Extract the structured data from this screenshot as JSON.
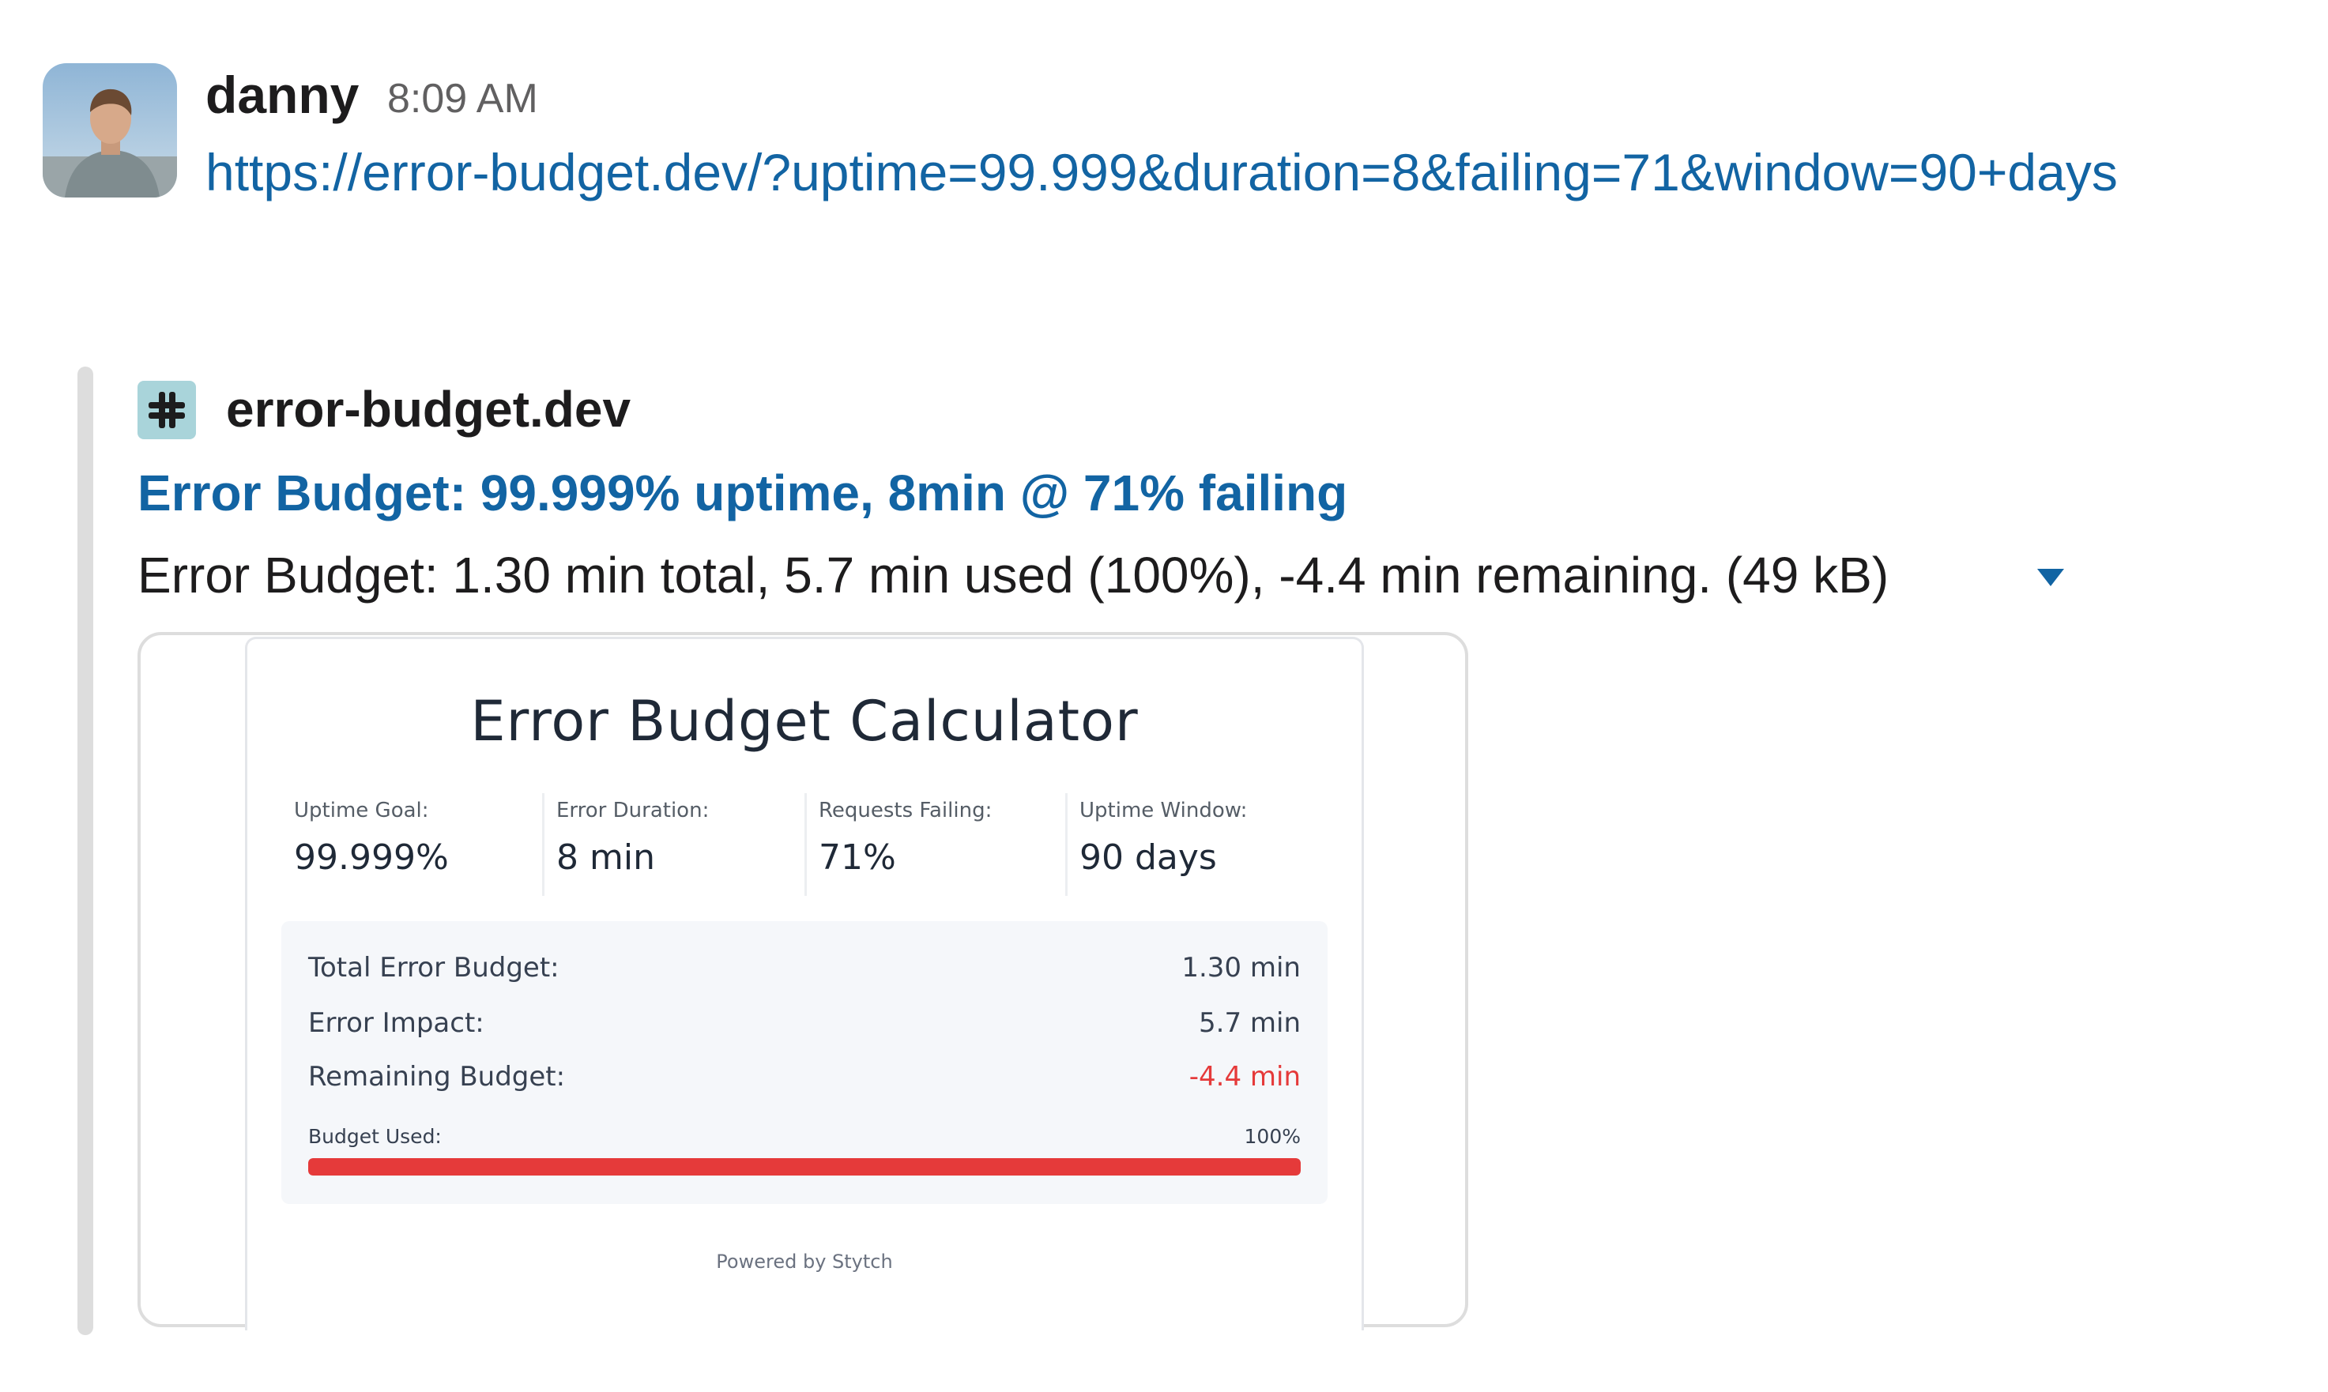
{
  "message": {
    "author": "danny",
    "timestamp": "8:09 AM",
    "link": "https://error-budget.dev/?uptime=99.999&duration=8&failing=71&window=90+days",
    "avatar_icon": "user-avatar"
  },
  "unfurl": {
    "site_icon": "slack-hash-icon",
    "site_name": "error-budget.dev",
    "title": "Error Budget: 99.999% uptime, 8min @ 71% failing",
    "description": "Error Budget: 1.30 min total, 5.7 min used (100%), -4.4 min remaining. (49 kB)",
    "toggle_icon": "caret-down-icon"
  },
  "preview": {
    "title": "Error Budget Calculator",
    "metrics": [
      {
        "label": "Uptime Goal:",
        "value": "99.999%"
      },
      {
        "label": "Error Duration:",
        "value": "8 min"
      },
      {
        "label": "Requests Failing:",
        "value": "71%"
      },
      {
        "label": "Uptime Window:",
        "value": "90 days"
      }
    ],
    "results": [
      {
        "label": "Total Error Budget:",
        "value": "1.30 min"
      },
      {
        "label": "Error Impact:",
        "value": "5.7 min"
      },
      {
        "label": "Remaining Budget:",
        "value": "-4.4 min"
      }
    ],
    "budget_used": {
      "label": "Budget Used:",
      "value": "100%",
      "fraction": 1.0
    },
    "footer": "Powered by Stytch"
  },
  "colors": {
    "link": "#1264a3",
    "negative": "#e53a3a",
    "site_icon_bg": "#a9d4da"
  }
}
